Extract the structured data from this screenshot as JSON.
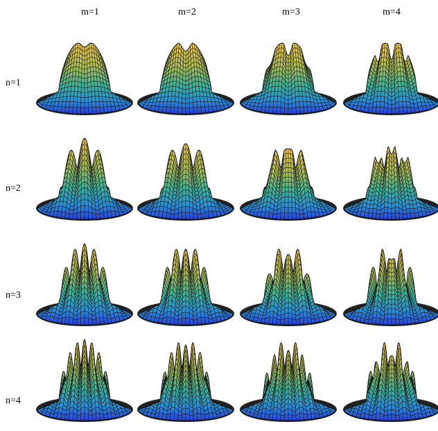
{
  "column_labels": [
    "m=1",
    "m=2",
    "m=3",
    "m=4"
  ],
  "row_labels": [
    "n=1",
    "n=2",
    "n=3",
    "n=4"
  ]
}
